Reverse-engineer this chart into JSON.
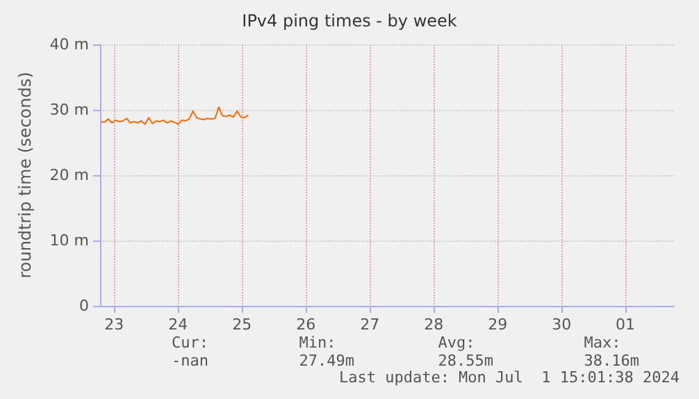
{
  "chart_data": {
    "type": "line",
    "title": "IPv4 ping times - by week",
    "ylabel": "roundtrip time (seconds)",
    "x": [
      "2024-06-23T07:00",
      "2024-06-23T08:23",
      "2024-06-23T09:46",
      "2024-06-23T11:09",
      "2024-06-23T12:32",
      "2024-06-23T13:55",
      "2024-06-23T15:18",
      "2024-06-23T16:41",
      "2024-06-23T18:04",
      "2024-06-23T19:27",
      "2024-06-23T20:50",
      "2024-06-23T22:13",
      "2024-06-23T23:36",
      "2024-06-24T00:59",
      "2024-06-24T02:22",
      "2024-06-24T03:45",
      "2024-06-24T05:08",
      "2024-06-24T06:31",
      "2024-06-24T07:54",
      "2024-06-24T09:17",
      "2024-06-24T10:40",
      "2024-06-24T12:03",
      "2024-06-24T13:26",
      "2024-06-24T14:49",
      "2024-06-24T16:12",
      "2024-06-24T17:35",
      "2024-06-24T18:58",
      "2024-06-24T20:21",
      "2024-06-24T21:44",
      "2024-06-24T23:07",
      "2024-06-25T00:30",
      "2024-06-25T01:53",
      "2024-06-25T03:16",
      "2024-06-25T04:39",
      "2024-06-25T06:02",
      "2024-06-25T07:25",
      "2024-06-25T08:48",
      "2024-06-25T10:11",
      "2024-06-25T11:34",
      "2024-06-25T12:57",
      "2024-06-25T14:20"
    ],
    "series": [
      {
        "color": "#ff6600",
        "values": [
          28.2,
          28.1,
          28.6,
          28.0,
          28.4,
          28.2,
          28.3,
          28.7,
          28.0,
          28.2,
          28.0,
          28.3,
          27.8,
          28.8,
          27.9,
          28.3,
          28.2,
          28.4,
          28.0,
          28.3,
          28.1,
          27.8,
          28.4,
          28.3,
          28.6,
          29.8,
          28.8,
          28.6,
          28.5,
          28.7,
          28.6,
          28.7,
          30.4,
          29.1,
          29.0,
          29.2,
          28.9,
          29.8,
          28.9,
          28.8,
          29.2
        ]
      }
    ],
    "xlim": [
      "2024-06-23T06:43",
      "2024-07-02T06:14"
    ],
    "xticks": [
      {
        "value": "2024-06-23T12:00",
        "label": "23"
      },
      {
        "value": "2024-06-24T12:00",
        "label": "24"
      },
      {
        "value": "2024-06-25T12:00",
        "label": "25"
      },
      {
        "value": "2024-06-26T12:00",
        "label": "26"
      },
      {
        "value": "2024-06-27T12:00",
        "label": "27"
      },
      {
        "value": "2024-06-28T12:00",
        "label": "28"
      },
      {
        "value": "2024-06-29T12:00",
        "label": "29"
      },
      {
        "value": "2024-06-30T12:00",
        "label": "30"
      },
      {
        "value": "2024-07-01T12:00",
        "label": "01"
      }
    ],
    "ylim": [
      0,
      40
    ],
    "yticks": [
      0,
      {
        "value": 10,
        "label": "10 m"
      },
      {
        "value": 20,
        "label": "20 m"
      },
      {
        "value": 30,
        "label": "30 m"
      },
      {
        "value": 40,
        "label": "40 m"
      }
    ],
    "grid": true,
    "marker": "none",
    "line_style": "solid",
    "annotations": [
      "Cur:\n-nan",
      "Min:\n27.49m",
      "Avg:\n28.55m",
      "Max:\n38.16m",
      "Last update: Mon Jul  1 15:01:38 2024"
    ]
  }
}
